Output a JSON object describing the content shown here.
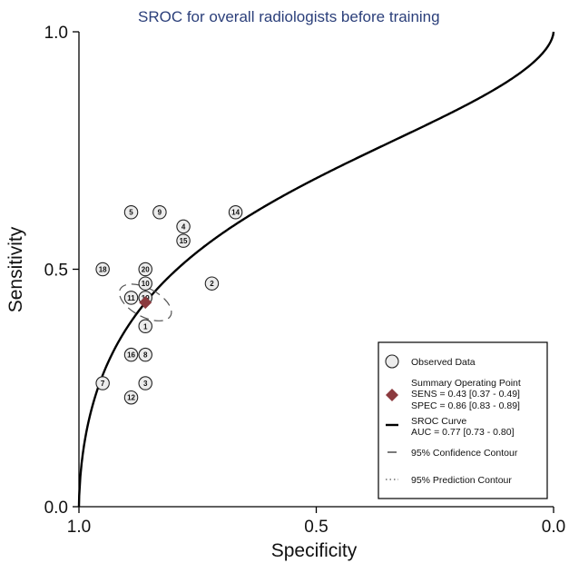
{
  "chart_data": {
    "type": "scatter",
    "title": "SROC for overall radiologists before training",
    "xlabel": "Specificity",
    "ylabel": "Sensitivity",
    "xlim": [
      1.0,
      0.0
    ],
    "ylim": [
      0.0,
      1.0
    ],
    "x_ticks": [
      "1.0",
      "0.5",
      "0.0"
    ],
    "y_ticks": [
      "0.0",
      "0.5",
      "1.0"
    ],
    "observed": [
      {
        "label": "1",
        "spec": 0.86,
        "sens": 0.38
      },
      {
        "label": "2",
        "spec": 0.72,
        "sens": 0.47
      },
      {
        "label": "3",
        "spec": 0.86,
        "sens": 0.26
      },
      {
        "label": "4",
        "spec": 0.78,
        "sens": 0.59
      },
      {
        "label": "5",
        "spec": 0.89,
        "sens": 0.62
      },
      {
        "label": "7",
        "spec": 0.95,
        "sens": 0.26
      },
      {
        "label": "8",
        "spec": 0.86,
        "sens": 0.32
      },
      {
        "label": "9",
        "spec": 0.83,
        "sens": 0.62
      },
      {
        "label": "10",
        "spec": 0.86,
        "sens": 0.47
      },
      {
        "label": "11",
        "spec": 0.89,
        "sens": 0.44
      },
      {
        "label": "12",
        "spec": 0.89,
        "sens": 0.23
      },
      {
        "label": "14",
        "spec": 0.67,
        "sens": 0.62
      },
      {
        "label": "15",
        "spec": 0.78,
        "sens": 0.56
      },
      {
        "label": "16",
        "spec": 0.89,
        "sens": 0.32
      },
      {
        "label": "18",
        "spec": 0.95,
        "sens": 0.5
      },
      {
        "label": "20",
        "spec": 0.86,
        "sens": 0.5
      },
      {
        "label": "19",
        "spec": 0.86,
        "sens": 0.44
      }
    ],
    "summary_point": {
      "spec": 0.86,
      "sens": 0.43
    },
    "sroc_curve": {
      "auc": 0.77
    },
    "confidence_contour": {
      "center_spec": 0.86,
      "center_sens": 0.43,
      "spec_halfwidth": 0.03,
      "sens_halfwidth": 0.06
    },
    "legend": {
      "position": "bottom-right",
      "entries": [
        {
          "key": "observed",
          "lines": [
            "Observed Data"
          ]
        },
        {
          "key": "summary",
          "lines": [
            "Summary Operating Point",
            "SENS = 0.43 [0.37 - 0.49]",
            "SPEC = 0.86 [0.83 - 0.89]"
          ]
        },
        {
          "key": "sroc",
          "lines": [
            "SROC Curve",
            "AUC = 0.77 [0.73 - 0.80]"
          ]
        },
        {
          "key": "confidence",
          "lines": [
            "95% Confidence Contour"
          ]
        },
        {
          "key": "prediction",
          "lines": [
            "95% Prediction Contour"
          ]
        }
      ]
    },
    "colors": {
      "title": "#2b3f7a",
      "summary_point": "#8b3a3e",
      "curve": "#000000",
      "marker_fill": "#ececec"
    }
  }
}
